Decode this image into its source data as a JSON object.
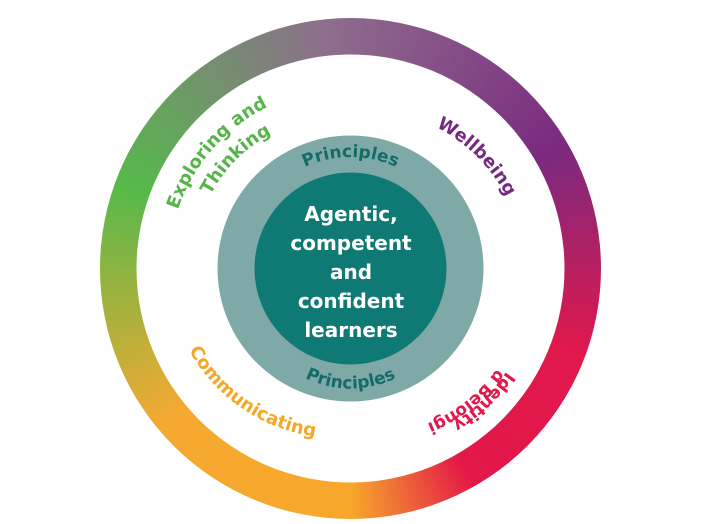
{
  "colors": {
    "ring_gradient": [
      "#f7a82b",
      "#f6a930",
      "#56b94a",
      "#8e6d8d",
      "#7a2a7f",
      "#e0184c",
      "#e31748",
      "#f7a82b"
    ],
    "ring_gradient_angles": [
      0,
      50,
      110,
      175,
      240,
      290,
      330,
      360
    ],
    "principles_ring": "#7fa9a7",
    "core_circle": "#0f7a73",
    "principles_text": "#146c67",
    "core_text": "#ffffff",
    "exploring": "#55b548",
    "wellbeing": "#742a80",
    "identity": "#e0184c",
    "communicating": "#f5a727"
  },
  "themes": {
    "exploring_line1": "Exploring and",
    "exploring_line2": "Thinking",
    "wellbeing": "Wellbeing",
    "identity_line1": "Identity",
    "identity_line2": "and Belonging",
    "communicating": "Communicating"
  },
  "principles": {
    "top": "Principles",
    "bottom": "Principles"
  },
  "core": {
    "line1": "Agentic,",
    "line2": "competent",
    "line3": "and",
    "line4": "confident",
    "line5": "learners"
  }
}
